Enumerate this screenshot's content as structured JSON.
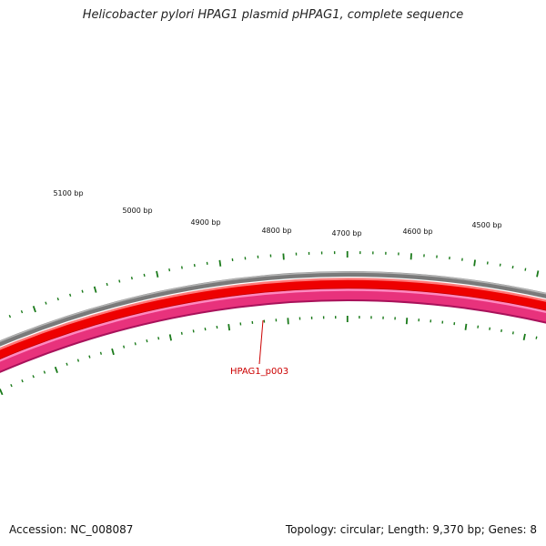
{
  "header": {
    "title": "Helicobacter pylori HPAG1 plasmid pHPAG1, complete sequence"
  },
  "footer": {
    "accession": "Accession: NC_008087",
    "summary": "Topology: circular; Length: 9,370 bp; Genes: 8"
  },
  "map": {
    "tick_labels": [
      "5100 bp",
      "5000 bp",
      "4900 bp",
      "4800 bp",
      "4700 bp",
      "4600 bp",
      "4500 bp"
    ],
    "gene_label": "HPAG1_p003",
    "colors": {
      "backbone": "#808080",
      "forward_feature": "#ff0000",
      "reverse_feature": "#e8327c",
      "ticks": "#1a7a1a",
      "gene_label": "#cc0000"
    }
  }
}
